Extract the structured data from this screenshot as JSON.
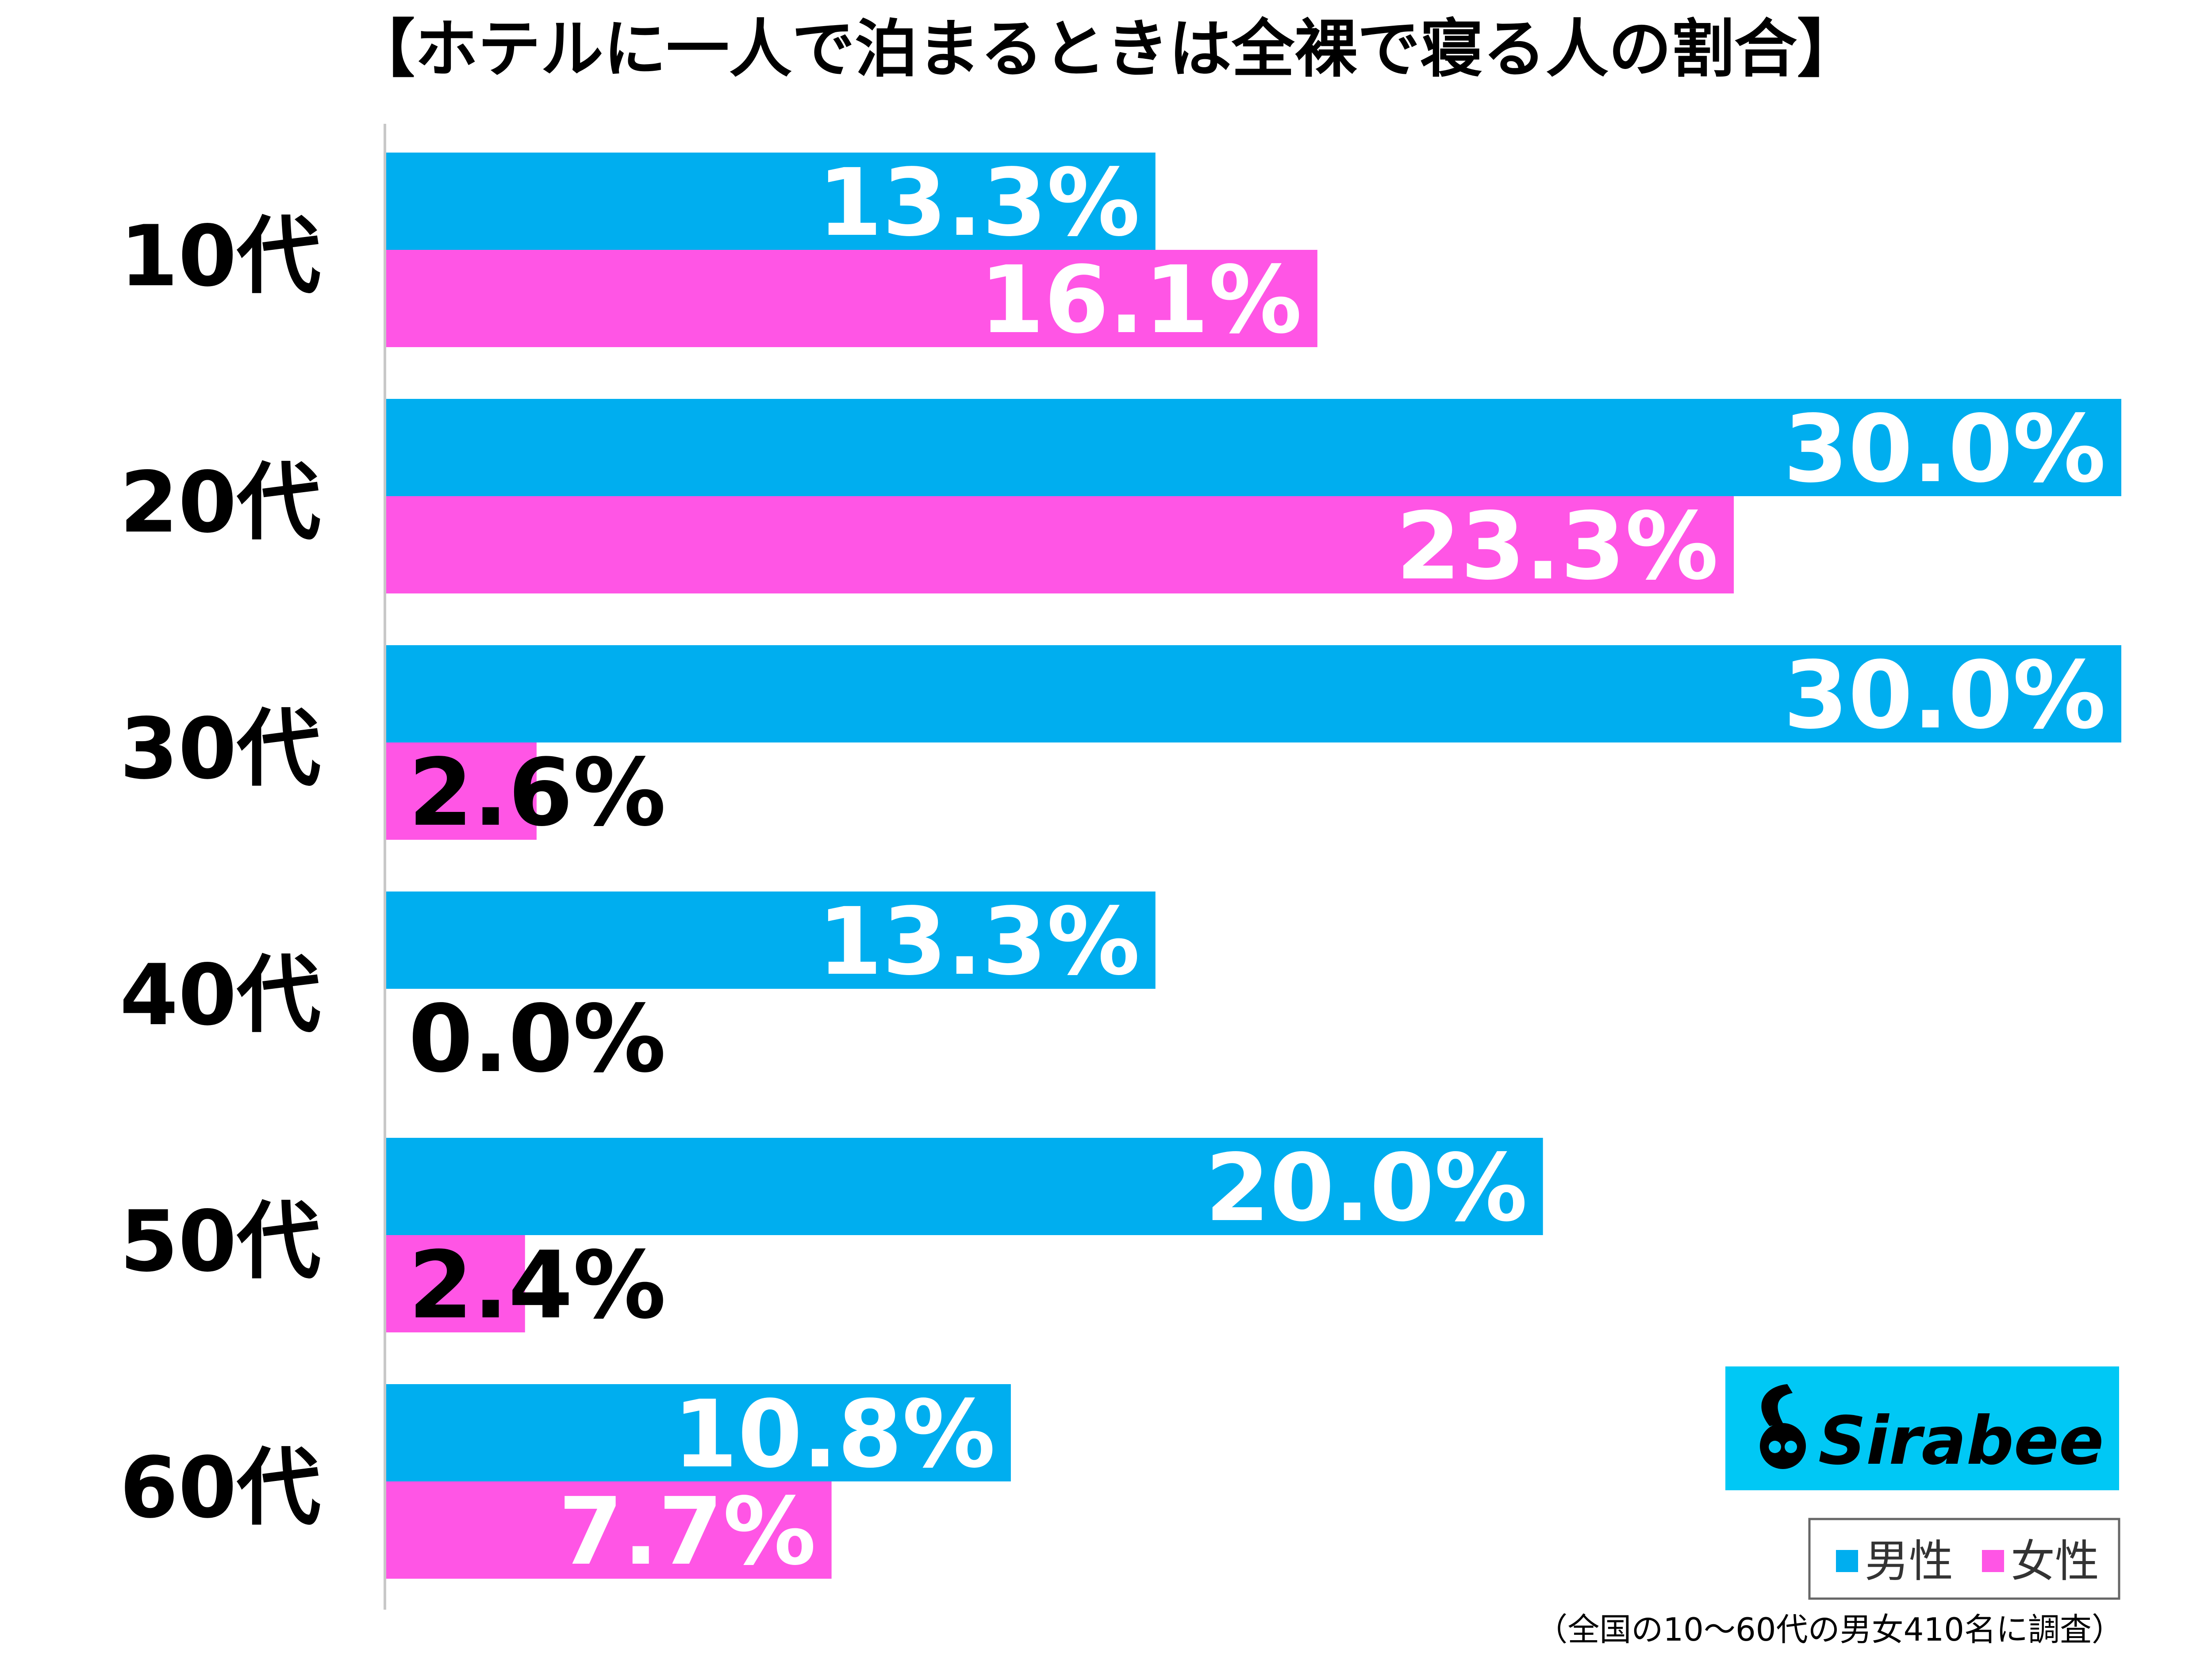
{
  "chart_data": {
    "type": "bar",
    "orientation": "horizontal",
    "title": "【ホテルに一人で泊まるときは全裸で寝る人の割合】",
    "categories": [
      "10代",
      "20代",
      "30代",
      "40代",
      "50代",
      "60代"
    ],
    "series": [
      {
        "name": "男性",
        "color": "#00aeef",
        "values": [
          13.3,
          30.0,
          30.0,
          13.3,
          20.0,
          10.8
        ],
        "labels": [
          "13.3%",
          "30.0%",
          "30.0%",
          "13.3%",
          "20.0%",
          "10.8%"
        ]
      },
      {
        "name": "女性",
        "color": "#ff55e5",
        "values": [
          16.1,
          23.3,
          2.6,
          0.0,
          2.4,
          7.7
        ],
        "labels": [
          "16.1%",
          "23.3%",
          "2.6%",
          "0.0%",
          "2.4%",
          "7.7%"
        ]
      }
    ],
    "xlim": [
      0,
      30
    ],
    "legend_position": "bottom-right",
    "grid": false
  },
  "legend": {
    "male": "男性",
    "female": "女性"
  },
  "logo": {
    "text": "Sirabee",
    "background": "#00c8f5"
  },
  "footnote": "（全国の10～60代の男女410名に調査）"
}
